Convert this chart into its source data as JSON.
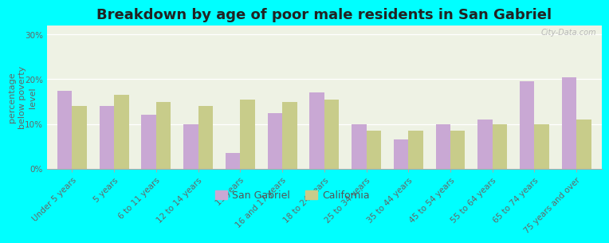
{
  "title": "Breakdown by age of poor male residents in San Gabriel",
  "ylabel": "percentage\nbelow poverty\nlevel",
  "categories": [
    "Under 5 years",
    "5 years",
    "6 to 11 years",
    "12 to 14 years",
    "15 years",
    "16 and 17 years",
    "18 to 24 years",
    "25 to 34 years",
    "35 to 44 years",
    "45 to 54 years",
    "55 to 64 years",
    "65 to 74 years",
    "75 years and over"
  ],
  "san_gabriel": [
    17.5,
    14.0,
    12.0,
    10.0,
    3.5,
    12.5,
    17.0,
    10.0,
    6.5,
    10.0,
    11.0,
    19.5,
    20.5
  ],
  "california": [
    14.0,
    16.5,
    15.0,
    14.0,
    15.5,
    15.0,
    15.5,
    8.5,
    8.5,
    8.5,
    10.0,
    10.0,
    11.0
  ],
  "sg_color": "#c9a8d4",
  "ca_color": "#c8cc8a",
  "plot_bg": "#eef2e4",
  "outer_bg": "#00ffff",
  "ylim": [
    0,
    32
  ],
  "yticks": [
    0,
    10,
    20,
    30
  ],
  "ytick_labels": [
    "0%",
    "10%",
    "20%",
    "30%"
  ],
  "bar_width": 0.35,
  "title_fontsize": 13,
  "axis_label_fontsize": 8,
  "tick_fontsize": 7.5,
  "legend_labels": [
    "San Gabriel",
    "California"
  ],
  "watermark": "City-Data.com"
}
